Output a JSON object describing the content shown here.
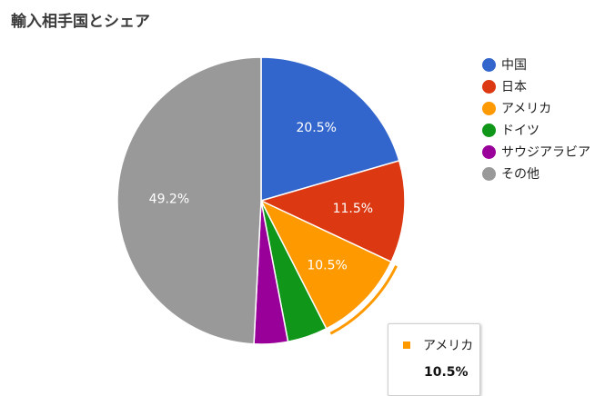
{
  "chart_data": {
    "type": "pie",
    "title": "輸入相手国とシェア",
    "categories": [
      "中国",
      "日本",
      "アメリカ",
      "ドイツ",
      "サウジアラビア",
      "その他"
    ],
    "values": [
      20.5,
      11.5,
      10.5,
      4.5,
      3.8,
      49.2
    ],
    "data_labels": [
      "20.5%",
      "11.5%",
      "10.5%",
      "",
      "",
      "49.2%"
    ],
    "colors": [
      "#3366cc",
      "#dc3912",
      "#ff9900",
      "#109618",
      "#990099",
      "#999999"
    ],
    "legend_position": "right",
    "highlighted_slice": "アメリカ"
  },
  "tooltip": {
    "label": "アメリカ",
    "value": "10.5%",
    "color": "#ff9900"
  }
}
